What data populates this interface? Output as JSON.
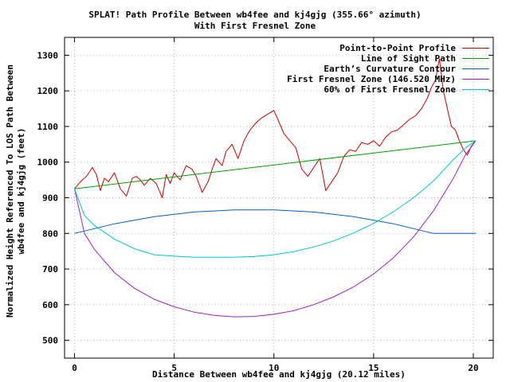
{
  "chart_data": {
    "type": "line",
    "title": "SPLAT! Path Profile Between wb4fee and kj4gjg (355.66° azimuth)",
    "subtitle": "With First Fresnel Zone",
    "xlabel": "Distance Between wb4fee and kj4gjg (20.12 miles)",
    "ylabel_line1": "Normalized Height Referenced To LOS Path Between",
    "ylabel_line2": "wb4fee and kj4gjg (feet)",
    "xlim": [
      -0.5,
      21
    ],
    "ylim": [
      450,
      1350
    ],
    "x_ticks": [
      0,
      5,
      10,
      15,
      20
    ],
    "y_ticks": [
      500,
      600,
      700,
      800,
      900,
      1000,
      1100,
      1200,
      1300
    ],
    "grid": true,
    "legend_position": "top-right",
    "series": [
      {
        "name": "Point-to-Point Profile",
        "color": "#cc0000",
        "x": [
          0,
          0.3,
          0.6,
          0.9,
          1.1,
          1.3,
          1.5,
          1.7,
          2.0,
          2.3,
          2.6,
          2.9,
          3.1,
          3.3,
          3.5,
          3.8,
          4.1,
          4.4,
          4.6,
          4.8,
          5.0,
          5.3,
          5.6,
          5.9,
          6.1,
          6.4,
          6.7,
          6.9,
          7.1,
          7.4,
          7.6,
          7.9,
          8.2,
          8.5,
          8.8,
          9.1,
          9.4,
          9.7,
          10.0,
          10.2,
          10.5,
          10.8,
          11.1,
          11.4,
          11.7,
          12.0,
          12.3,
          12.6,
          12.9,
          13.2,
          13.5,
          13.8,
          14.1,
          14.4,
          14.7,
          15.0,
          15.3,
          15.6,
          15.9,
          16.2,
          16.5,
          16.8,
          17.1,
          17.4,
          17.7,
          17.9,
          18.1,
          18.3,
          18.5,
          18.7,
          18.9,
          19.1,
          19.3,
          19.5,
          19.7,
          19.9,
          20.12
        ],
        "values": [
          925,
          945,
          960,
          985,
          965,
          920,
          955,
          945,
          970,
          925,
          905,
          955,
          960,
          950,
          935,
          955,
          940,
          900,
          965,
          940,
          970,
          950,
          990,
          980,
          960,
          915,
          945,
          980,
          1010,
          990,
          1030,
          1050,
          1010,
          1060,
          1090,
          1110,
          1125,
          1135,
          1145,
          1120,
          1080,
          1060,
          1040,
          980,
          960,
          985,
          1010,
          920,
          945,
          970,
          1015,
          1035,
          1030,
          1055,
          1050,
          1060,
          1045,
          1070,
          1085,
          1090,
          1105,
          1120,
          1130,
          1150,
          1180,
          1210,
          1230,
          1290,
          1200,
          1150,
          1100,
          1090,
          1060,
          1035,
          1020,
          1045,
          1060
        ]
      },
      {
        "name": "Line of Sight Path",
        "color": "#00a000",
        "x": [
          0,
          20.12
        ],
        "values": [
          925,
          1060
        ]
      },
      {
        "name": "Earth’s Curvature Contour",
        "color": "#0060c8",
        "x": [
          0,
          2,
          4,
          6,
          8,
          10,
          12,
          14,
          16,
          18,
          20.12
        ],
        "values": [
          800,
          827,
          847,
          860,
          866,
          866,
          860,
          847,
          827,
          800,
          800
        ]
      },
      {
        "name": "First Fresnel Zone (146.520 MHz)",
        "color": "#a020c8",
        "x": [
          0,
          0.5,
          1,
          2,
          3,
          4,
          5,
          6,
          7,
          8,
          9,
          10,
          11,
          12,
          13,
          14,
          15,
          16,
          17,
          18,
          19,
          19.6,
          20.12
        ],
        "values": [
          925,
          800,
          755,
          690,
          646,
          615,
          594,
          579,
          570,
          566,
          567,
          573,
          583,
          600,
          622,
          650,
          686,
          732,
          790,
          863,
          955,
          1020,
          1060
        ]
      },
      {
        "name": "60% of First Fresnel Zone",
        "color": "#00c8c8",
        "x": [
          0,
          0.5,
          1,
          2,
          3,
          4,
          5,
          6,
          7,
          8,
          9,
          10,
          11,
          12,
          13,
          14,
          15,
          16,
          17,
          18,
          19,
          19.6,
          20.12
        ],
        "values": [
          925,
          850,
          822,
          784,
          757,
          740,
          736,
          733,
          733,
          733,
          735,
          740,
          749,
          762,
          779,
          801,
          828,
          861,
          900,
          947,
          1007,
          1040,
          1060
        ]
      }
    ]
  }
}
